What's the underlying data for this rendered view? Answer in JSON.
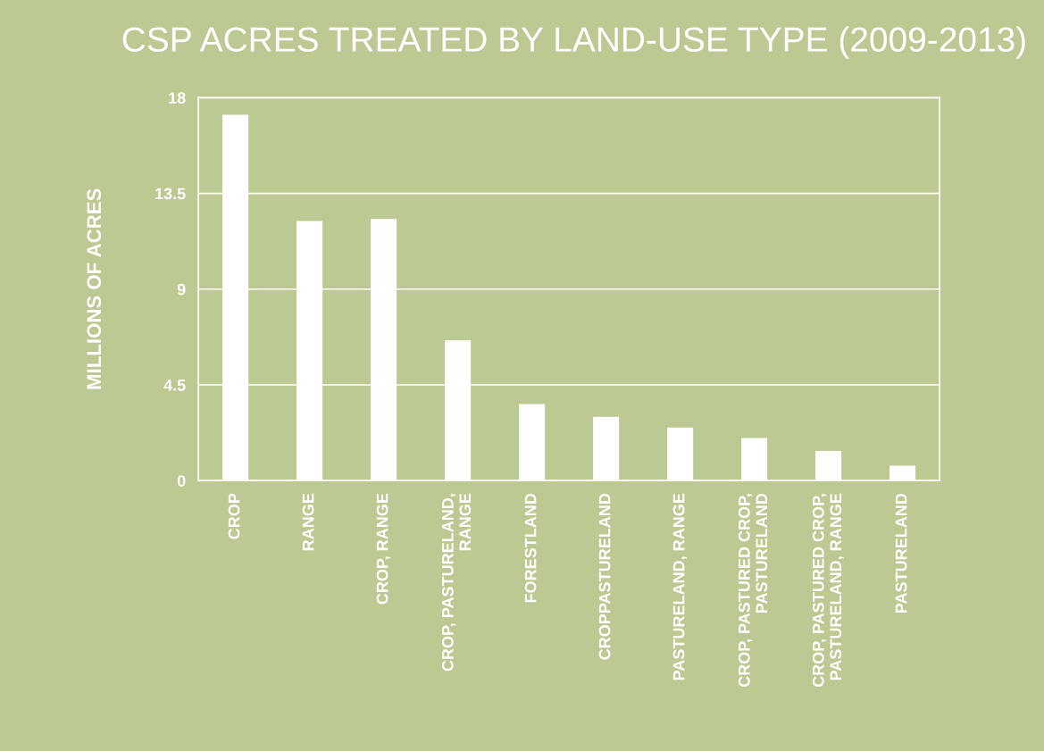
{
  "chart_data": {
    "type": "bar",
    "title": "CSP ACRES TREATED BY LAND-USE TYPE (2009-2013)",
    "ylabel": "MILLIONS OF ACRES",
    "categories": [
      "CROP",
      "RANGE",
      "CROP, RANGE",
      "CROP, PASTURELAND,\nRANGE",
      "FORESTLAND",
      "CROPPASTURELAND",
      "PASTURELAND, RANGE",
      "CROP, PASTURED CROP,\nPASTURELAND",
      "CROP, PASTURED CROP,\nPASTURELAND, RANGE",
      "PASTURELAND"
    ],
    "values": [
      17.2,
      12.2,
      12.3,
      6.6,
      3.6,
      3.0,
      2.5,
      2.0,
      1.4,
      0.7
    ],
    "color": "#ffffff",
    "ylim": [
      0,
      18
    ],
    "yticks": [
      0,
      4.5,
      9,
      13.5,
      18
    ],
    "grid": "y"
  }
}
